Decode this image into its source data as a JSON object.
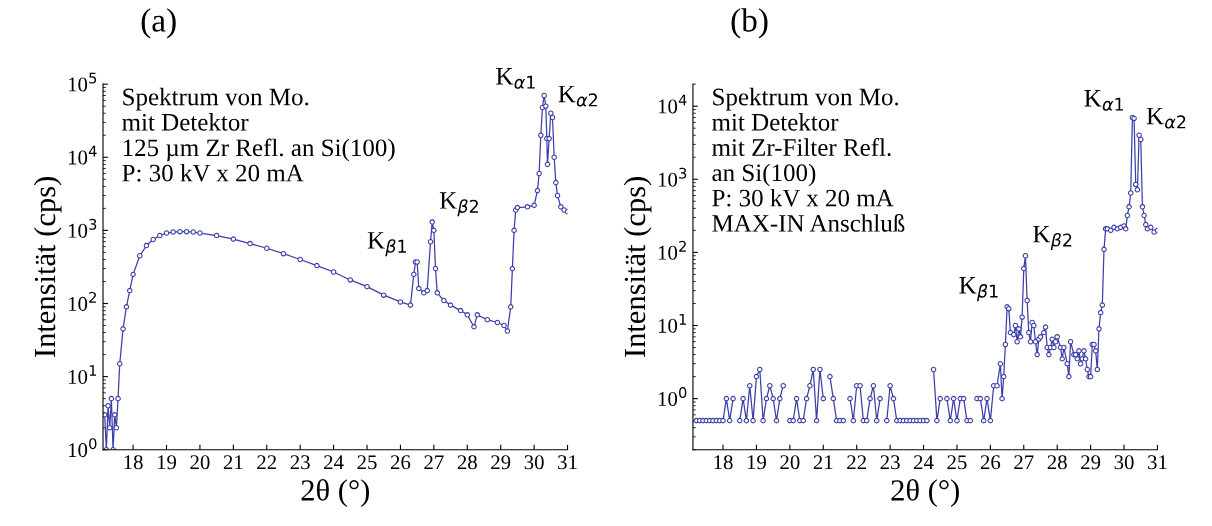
{
  "chart_data": [
    {
      "type": "line",
      "title": "(a)",
      "xlabel": "2θ (°)",
      "ylabel": "Intensität (cps)",
      "marker": "circle",
      "line_style": "solid",
      "grid": false,
      "legend": false,
      "log": "y",
      "xlim": [
        17.1,
        31.0
      ],
      "xticks": [
        18,
        19,
        20,
        21,
        22,
        23,
        24,
        25,
        26,
        27,
        28,
        29,
        30,
        31
      ],
      "ylim": [
        1,
        100000
      ],
      "yticks": [
        {
          "value": 1,
          "label": "10$^{0}$"
        },
        {
          "value": 10,
          "label": "10$^{1}$"
        },
        {
          "value": 100,
          "label": "10$^{2}$"
        },
        {
          "value": 1000,
          "label": "10$^{3}$"
        },
        {
          "value": 10000,
          "label": "10$^{4}$"
        },
        {
          "value": 100000,
          "label": "10$^{5}$"
        }
      ],
      "series": [
        {
          "color": "#3b3fa8",
          "x": [
            17.15,
            17.2,
            17.25,
            17.3,
            17.35,
            17.4,
            17.45,
            17.5,
            17.55,
            17.6,
            17.7,
            17.8,
            17.9,
            18.0,
            18.2,
            18.4,
            18.6,
            18.8,
            19.0,
            19.2,
            19.4,
            19.6,
            19.8,
            20.0,
            20.5,
            21.0,
            21.5,
            22.0,
            22.5,
            23.0,
            23.5,
            24.0,
            24.5,
            25.0,
            25.5,
            26.0,
            26.3,
            26.4,
            26.45,
            26.5,
            26.55,
            26.7,
            26.8,
            26.9,
            26.95,
            27.0,
            27.05,
            27.1,
            27.3,
            27.5,
            27.8,
            28.0,
            28.2,
            28.3,
            28.6,
            28.9,
            29.1,
            29.2,
            29.3,
            29.35,
            29.4,
            29.45,
            29.5,
            29.8,
            30.0,
            30.1,
            30.15,
            30.2,
            30.25,
            30.3,
            30.35,
            30.38,
            30.4,
            30.45,
            30.5,
            30.55,
            30.6,
            30.65,
            30.7,
            30.8,
            30.9,
            31.0
          ],
          "values": [
            3,
            1,
            4,
            2,
            5,
            1,
            3,
            2,
            5,
            15,
            45,
            90,
            150,
            250,
            450,
            620,
            750,
            850,
            920,
            950,
            960,
            960,
            950,
            920,
            850,
            760,
            660,
            570,
            480,
            400,
            330,
            270,
            210,
            170,
            130,
            105,
            95,
            250,
            370,
            370,
            160,
            140,
            150,
            700,
            1300,
            1000,
            300,
            140,
            110,
            95,
            80,
            70,
            48,
            70,
            60,
            55,
            50,
            42,
            90,
            300,
            1000,
            1900,
            2050,
            2100,
            2200,
            3500,
            6000,
            20000,
            48000,
            70000,
            50000,
            18000,
            8000,
            18000,
            40000,
            35000,
            10000,
            4500,
            3000,
            2100,
            1900,
            1800
          ]
        }
      ],
      "annotations": [
        "Spektrum von Mo.\nmit Detektor\n125 µm Zr Refl. an Si(100)\nP: 30 kV x 20 mA",
        {
          "text": "K$_{β1}$",
          "x": 26.45,
          "y": 370
        },
        {
          "text": "K$_{β2}$",
          "x": 26.95,
          "y": 1300
        },
        {
          "text": "K$_{α1}$",
          "x": 30.3,
          "y": 70000
        },
        {
          "text": "K$_{α2}$",
          "x": 30.5,
          "y": 40000
        }
      ]
    },
    {
      "type": "line",
      "title": "(b)",
      "xlabel": "2θ (°)",
      "ylabel": "Intensität (cps)",
      "marker": "circle",
      "line_style": "solid",
      "grid": false,
      "legend": false,
      "log": "y",
      "xlim": [
        17.1,
        31.0
      ],
      "xticks": [
        18,
        19,
        20,
        21,
        22,
        23,
        24,
        25,
        26,
        27,
        28,
        29,
        30,
        31
      ],
      "ylim": [
        0.2,
        20000
      ],
      "yticks": [
        {
          "value": 1,
          "label": "10$^{0}$"
        },
        {
          "value": 10,
          "label": "10$^{1}$"
        },
        {
          "value": 100,
          "label": "10$^{2}$"
        },
        {
          "value": 1000,
          "label": "10$^{3}$"
        },
        {
          "value": 10000,
          "label": "10$^{4}$"
        }
      ],
      "series": [
        {
          "color": "#3b3fa8",
          "x": [
            17.2,
            17.3,
            17.4,
            17.5,
            17.6,
            17.7,
            17.8,
            17.9,
            18.0,
            18.1,
            18.2,
            18.3,
            18.4,
            18.5,
            18.6,
            18.7,
            18.8,
            18.9,
            19.0,
            19.1,
            19.2,
            19.3,
            19.4,
            19.5,
            19.6,
            19.7,
            19.8,
            19.9,
            20.0,
            20.1,
            20.2,
            20.3,
            20.4,
            20.5,
            20.6,
            20.7,
            20.8,
            20.9,
            21.0,
            21.1,
            21.2,
            21.3,
            21.4,
            21.5,
            21.6,
            21.7,
            21.8,
            21.9,
            22.0,
            22.1,
            22.2,
            22.3,
            22.4,
            22.5,
            22.6,
            22.7,
            22.8,
            22.9,
            23.0,
            23.1,
            23.2,
            23.3,
            23.4,
            23.5,
            23.6,
            23.7,
            23.8,
            23.9,
            24.0,
            24.1,
            24.2,
            24.3,
            24.4,
            24.5,
            24.6,
            24.7,
            24.8,
            24.9,
            25.0,
            25.1,
            25.2,
            25.3,
            25.4,
            25.5,
            25.6,
            25.7,
            25.8,
            25.9,
            26.0,
            26.1,
            26.2,
            26.3,
            26.35,
            26.4,
            26.45,
            26.5,
            26.55,
            26.6,
            26.7,
            26.75,
            26.8,
            26.85,
            26.9,
            26.95,
            27.0,
            27.05,
            27.1,
            27.15,
            27.2,
            27.25,
            27.3,
            27.35,
            27.4,
            27.45,
            27.5,
            27.6,
            27.65,
            27.7,
            27.75,
            27.8,
            27.85,
            27.9,
            27.95,
            28.0,
            28.1,
            28.15,
            28.2,
            28.3,
            28.35,
            28.4,
            28.5,
            28.55,
            28.6,
            28.65,
            28.7,
            28.75,
            28.8,
            28.85,
            28.9,
            28.95,
            29.0,
            29.05,
            29.1,
            29.15,
            29.2,
            29.25,
            29.3,
            29.35,
            29.4,
            29.45,
            29.5,
            29.6,
            29.7,
            29.8,
            29.9,
            30.0,
            30.05,
            30.1,
            30.15,
            30.2,
            30.25,
            30.3,
            30.35,
            30.4,
            30.45,
            30.5,
            30.55,
            30.6,
            30.65,
            30.7,
            30.8,
            30.9,
            31.0
          ],
          "values": [
            0.5,
            0.5,
            0.5,
            0.5,
            0.5,
            0.5,
            0.5,
            0.5,
            0.5,
            1,
            0.5,
            1,
            null,
            0.5,
            1,
            0.5,
            1.5,
            0.5,
            2,
            2.5,
            0.5,
            1,
            1.5,
            1,
            0.5,
            1,
            1.5,
            null,
            0.5,
            0.5,
            1,
            0.5,
            0.5,
            1,
            1.5,
            2.5,
            0.5,
            2.5,
            1,
            null,
            2,
            1,
            0.5,
            0.5,
            0.5,
            null,
            1,
            0.5,
            1.5,
            1.5,
            0.5,
            0.5,
            1,
            1.5,
            0.5,
            1,
            null,
            0.5,
            1.5,
            1,
            0.5,
            0.5,
            0.5,
            0.5,
            0.5,
            0.5,
            0.5,
            0.5,
            0.5,
            0.5,
            null,
            2.5,
            0.5,
            1,
            null,
            1,
            0.5,
            1,
            0.5,
            1,
            1,
            0.5,
            0.5,
            null,
            1,
            1,
            0.5,
            1,
            0.5,
            1.5,
            1.5,
            3,
            1,
            2,
            5.5,
            18,
            17,
            8,
            7.5,
            10,
            6,
            9,
            7,
            13,
            60,
            90,
            22,
            8,
            6,
            11,
            10,
            6,
            4,
            6.5,
            7,
            8,
            9.5,
            5,
            4,
            5,
            6.5,
            5,
            6,
            7,
            5,
            3.5,
            5,
            3,
            2,
            6,
            4,
            4,
            3.5,
            4.5,
            3,
            3.5,
            4.5,
            3.5,
            2.5,
            2,
            2,
            5.5,
            5.5,
            4.5,
            2.5,
            9,
            15,
            19,
            110,
            210,
            210,
            200,
            220,
            210,
            220,
            230,
            210,
            320,
            420,
            650,
            7000,
            6800,
            850,
            720,
            4000,
            3500,
            420,
            320,
            240,
            210,
            220,
            190,
            200
          ]
        }
      ],
      "annotations": [
        "Spektrum von Mo.\nmit Detektor\nmit Zr-Filter Refl.\nan Si(100)\nP: 30 kV x 20 mA\nMAX-IN Anschluß",
        {
          "text": "K$_{β1}$",
          "x": 26.5,
          "y": 18
        },
        {
          "text": "K$_{β2}$",
          "x": 27.05,
          "y": 90
        },
        {
          "text": "K$_{α1}$",
          "x": 30.25,
          "y": 7000
        },
        {
          "text": "K$_{α2}$",
          "x": 30.45,
          "y": 4000
        }
      ]
    }
  ]
}
